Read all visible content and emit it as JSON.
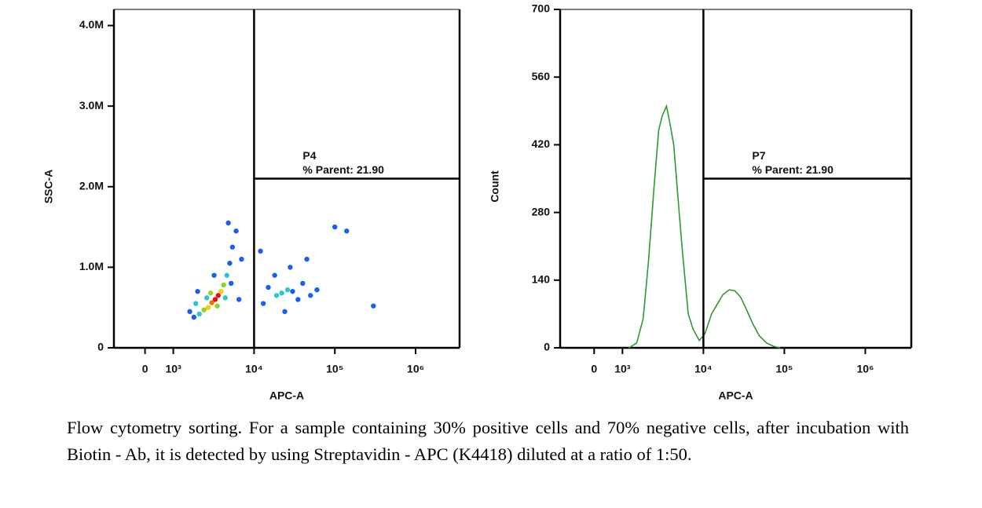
{
  "chart_data": [
    {
      "type": "scatter",
      "xlabel": "APC-A",
      "ylabel": "SSC-A",
      "xscale": "biexponential",
      "xlim": [
        -1100,
        3500000
      ],
      "ylim": [
        0,
        4200000
      ],
      "xticks": [
        0,
        {
          "value": 1000,
          "label": "10³"
        },
        {
          "value": 10000,
          "label": "10⁴"
        },
        {
          "value": 100000,
          "label": "10⁵"
        },
        {
          "value": 1000000,
          "label": "10⁶"
        }
      ],
      "yticks": [
        0,
        {
          "value": 1000000,
          "label": "1.0M"
        },
        {
          "value": 2000000,
          "label": "2.0M"
        },
        {
          "value": 3000000,
          "label": "3.0M"
        },
        {
          "value": 4000000,
          "label": "4.0M"
        }
      ],
      "gate": {
        "name": "P4",
        "label": "% Parent: 21.90",
        "x": 10000,
        "y": 2100000
      },
      "x": [
        3300,
        3600,
        3000,
        3900,
        2700,
        4200,
        2400,
        3500,
        2900,
        4600,
        2100,
        4400,
        2600,
        5000,
        5400,
        6000,
        1800,
        1600,
        2000,
        5200,
        4800,
        3200,
        7000,
        6500,
        1900,
        22000,
        26000,
        19000,
        30000,
        15000,
        35000,
        40000,
        50000,
        13000,
        18000,
        28000,
        24000,
        45000,
        60000,
        12000,
        100000,
        140000,
        300000
      ],
      "y": [
        600000,
        650000,
        560000,
        700000,
        500000,
        780000,
        470000,
        520000,
        680000,
        900000,
        420000,
        620000,
        620000,
        1050000,
        1250000,
        1450000,
        380000,
        450000,
        700000,
        800000,
        1550000,
        900000,
        1100000,
        600000,
        550000,
        680000,
        720000,
        650000,
        700000,
        750000,
        600000,
        800000,
        650000,
        550000,
        900000,
        1000000,
        450000,
        1100000,
        720000,
        1200000,
        1500000,
        1450000,
        520000
      ],
      "colors": [
        "#e8120c",
        "#e8120c",
        "#f07010",
        "#f5d010",
        "#f5d010",
        "#8ed42a",
        "#8ed42a",
        "#8ed42a",
        "#8ed42a",
        "#2ec4d0",
        "#2ec4d0",
        "#2ec4d0",
        "#2ec4d0",
        "#1a5ef0",
        "#1a5ef0",
        "#1a5ef0",
        "#1a5ef0",
        "#1a5ef0",
        "#1a5ef0",
        "#1a5ef0",
        "#1a5ef0",
        "#1a5ef0",
        "#1a5ef0",
        "#1a5ef0",
        "#2ec4d0",
        "#2ec4d0",
        "#2ec4d0",
        "#2ec4d0",
        "#1a5ef0",
        "#1a5ef0",
        "#1a5ef0",
        "#1a5ef0",
        "#1a5ef0",
        "#1a5ef0",
        "#1a5ef0",
        "#1a5ef0",
        "#1a5ef0",
        "#1a5ef0",
        "#1a5ef0",
        "#1a5ef0",
        "#1a5ef0",
        "#1a5ef0",
        "#1a5ef0"
      ]
    },
    {
      "type": "line",
      "xlabel": "APC-A",
      "ylabel": "Count",
      "xscale": "biexponential",
      "xlim": [
        -1200,
        3700000
      ],
      "ylim": [
        0,
        700
      ],
      "xticks": [
        0,
        {
          "value": 1000,
          "label": "10³"
        },
        {
          "value": 10000,
          "label": "10⁴"
        },
        {
          "value": 100000,
          "label": "10⁵"
        },
        {
          "value": 1000000,
          "label": "10⁶"
        }
      ],
      "yticks": [
        0,
        140,
        280,
        420,
        560,
        700
      ],
      "gate": {
        "name": "P7",
        "label": "% Parent: 21.90",
        "x": 10000,
        "y": 350
      },
      "x": [
        1200,
        1500,
        1800,
        2100,
        2450,
        2800,
        3100,
        3500,
        3800,
        4300,
        4800,
        5500,
        6500,
        7400,
        8900,
        10500,
        12600,
        14800,
        17400,
        20900,
        24500,
        28800,
        33900,
        40700,
        49000,
        60300,
        74100,
        89100
      ],
      "series": [
        {
          "color": "#2e9a2e",
          "values": [
            0,
            10,
            60,
            180,
            330,
            450,
            480,
            500,
            470,
            420,
            320,
            200,
            70,
            40,
            15,
            30,
            70,
            90,
            110,
            120,
            118,
            105,
            80,
            50,
            25,
            10,
            3,
            0
          ]
        }
      ]
    }
  ],
  "caption": "Flow cytometry sorting. For a sample containing 30% positive cells and 70% negative cells, after incubation with Biotin - Ab, it is detected by using Streptavidin - APC (K4418) diluted at a ratio of 1:50."
}
